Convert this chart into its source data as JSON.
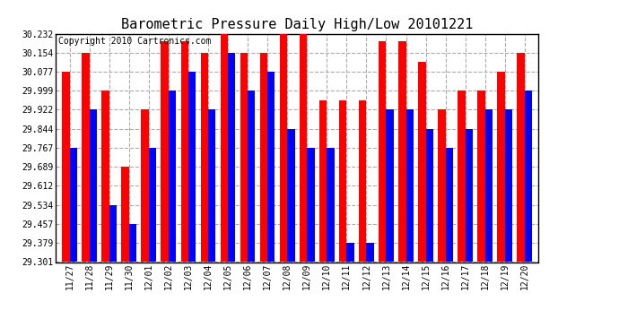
{
  "title": "Barometric Pressure Daily High/Low 20101221",
  "copyright": "Copyright 2010 Cartronics.com",
  "categories": [
    "11/27",
    "11/28",
    "11/29",
    "11/30",
    "12/01",
    "12/02",
    "12/03",
    "12/04",
    "12/05",
    "12/06",
    "12/07",
    "12/08",
    "12/09",
    "12/10",
    "12/11",
    "12/12",
    "12/13",
    "12/14",
    "12/15",
    "12/16",
    "12/17",
    "12/18",
    "12/19",
    "12/20"
  ],
  "highs": [
    30.077,
    30.154,
    29.999,
    29.689,
    29.922,
    30.2,
    30.2,
    30.154,
    30.232,
    30.154,
    30.154,
    30.232,
    30.232,
    29.96,
    29.96,
    29.96,
    30.2,
    30.2,
    30.118,
    29.922,
    29.999,
    29.999,
    30.077,
    30.154
  ],
  "lows": [
    29.767,
    29.922,
    29.534,
    29.457,
    29.767,
    29.999,
    30.077,
    29.922,
    30.154,
    29.999,
    30.077,
    29.844,
    29.767,
    29.767,
    29.379,
    29.379,
    29.922,
    29.922,
    29.844,
    29.767,
    29.844,
    29.922,
    29.922,
    29.999
  ],
  "ymin": 29.301,
  "ymax": 30.232,
  "yticks": [
    29.301,
    29.379,
    29.457,
    29.534,
    29.612,
    29.689,
    29.767,
    29.844,
    29.922,
    29.999,
    30.077,
    30.154,
    30.232
  ],
  "bar_color_high": "#ff0000",
  "bar_color_low": "#0000ff",
  "bg_color": "#ffffff",
  "grid_color": "#aaaaaa",
  "title_fontsize": 11,
  "copyright_fontsize": 7,
  "bar_width": 0.38
}
